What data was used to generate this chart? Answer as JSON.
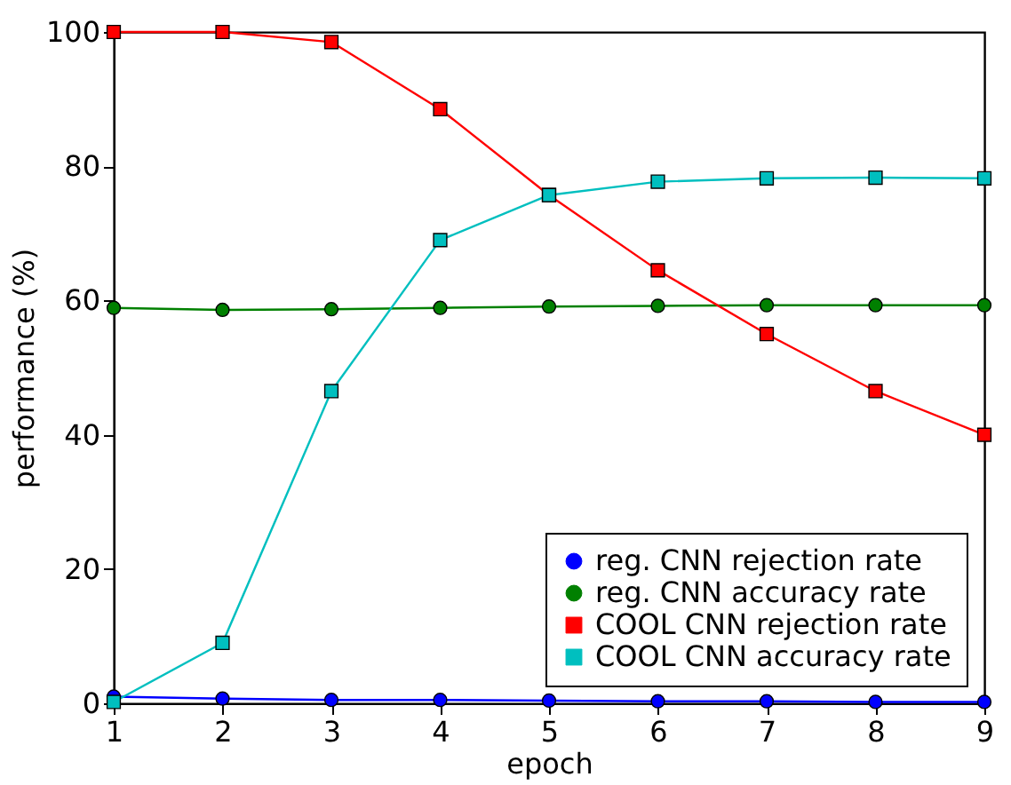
{
  "chart_data": {
    "type": "line",
    "xlabel": "epoch",
    "ylabel": "performance (%)",
    "x": [
      1,
      2,
      3,
      4,
      5,
      6,
      7,
      8,
      9
    ],
    "xlim": [
      1,
      9
    ],
    "xticks": [
      1,
      2,
      3,
      4,
      5,
      6,
      7,
      8,
      9
    ],
    "ylim": [
      0,
      100
    ],
    "yticks": [
      0,
      20,
      40,
      60,
      80,
      100
    ],
    "grid": false,
    "legend": "bottom right",
    "series": [
      {
        "name": "reg. CNN rejection rate",
        "color": "#0000ff",
        "marker": "circle",
        "values": [
          1.0,
          0.7,
          0.5,
          0.5,
          0.4,
          0.3,
          0.3,
          0.2,
          0.2
        ]
      },
      {
        "name": "reg. CNN accuracy rate",
        "color": "#008000",
        "marker": "circle",
        "values": [
          58.9,
          58.6,
          58.7,
          58.9,
          59.1,
          59.2,
          59.3,
          59.3,
          59.3
        ]
      },
      {
        "name": "COOL CNN rejection rate",
        "color": "#ff0000",
        "marker": "square",
        "values": [
          100,
          100,
          98.5,
          88.5,
          75.7,
          64.5,
          55,
          46.5,
          40
        ]
      },
      {
        "name": "COOL CNN accuracy rate",
        "color": "#00bfbf",
        "marker": "square",
        "values": [
          0.2,
          9,
          46.5,
          69,
          75.7,
          77.7,
          78.2,
          78.3,
          78.2
        ]
      }
    ]
  }
}
